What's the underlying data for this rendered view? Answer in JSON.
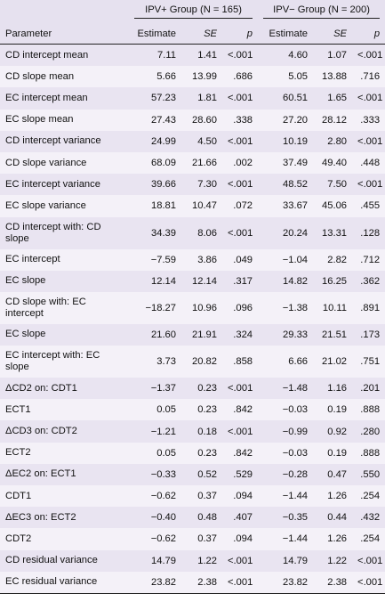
{
  "table": {
    "groups": [
      "IPV+ Group (N = 165)",
      "IPV− Group (N = 200)"
    ],
    "columns": [
      "Parameter",
      "Estimate",
      "SE",
      "p",
      "Estimate",
      "SE",
      "p"
    ],
    "rows": [
      [
        "CD intercept mean",
        "7.11",
        "1.41",
        "<.001",
        "4.60",
        "1.07",
        "<.001"
      ],
      [
        "CD slope mean",
        "5.66",
        "13.99",
        ".686",
        "5.05",
        "13.88",
        ".716"
      ],
      [
        "EC intercept mean",
        "57.23",
        "1.81",
        "<.001",
        "60.51",
        "1.65",
        "<.001"
      ],
      [
        "EC slope mean",
        "27.43",
        "28.60",
        ".338",
        "27.20",
        "28.12",
        ".333"
      ],
      [
        "CD intercept variance",
        "24.99",
        "4.50",
        "<.001",
        "10.19",
        "2.80",
        "<.001"
      ],
      [
        "CD slope variance",
        "68.09",
        "21.66",
        ".002",
        "37.49",
        "49.40",
        ".448"
      ],
      [
        "EC intercept variance",
        "39.66",
        "7.30",
        "<.001",
        "48.52",
        "7.50",
        "<.001"
      ],
      [
        "EC slope variance",
        "18.81",
        "10.47",
        ".072",
        "33.67",
        "45.06",
        ".455"
      ],
      [
        "CD intercept with: CD slope",
        "34.39",
        "8.06",
        "<.001",
        "20.24",
        "13.31",
        ".128"
      ],
      [
        "EC intercept",
        "−7.59",
        "3.86",
        ".049",
        "−1.04",
        "2.82",
        ".712"
      ],
      [
        "EC slope",
        "12.14",
        "12.14",
        ".317",
        "14.82",
        "16.25",
        ".362"
      ],
      [
        "CD slope with: EC intercept",
        "−18.27",
        "10.96",
        ".096",
        "−1.38",
        "10.11",
        ".891"
      ],
      [
        "EC slope",
        "21.60",
        "21.91",
        ".324",
        "29.33",
        "21.51",
        ".173"
      ],
      [
        "EC intercept with: EC slope",
        "3.73",
        "20.82",
        ".858",
        "6.66",
        "21.02",
        ".751"
      ],
      [
        "ΔCD2 on: CDT1",
        "−1.37",
        "0.23",
        "<.001",
        "−1.48",
        "1.16",
        ".201"
      ],
      [
        "ECT1",
        "0.05",
        "0.23",
        ".842",
        "−0.03",
        "0.19",
        ".888"
      ],
      [
        "ΔCD3 on: CDT2",
        "−1.21",
        "0.18",
        "<.001",
        "−0.99",
        "0.92",
        ".280"
      ],
      [
        "ECT2",
        "0.05",
        "0.23",
        ".842",
        "−0.03",
        "0.19",
        ".888"
      ],
      [
        "ΔEC2 on: ECT1",
        "−0.33",
        "0.52",
        ".529",
        "−0.28",
        "0.47",
        ".550"
      ],
      [
        "CDT1",
        "−0.62",
        "0.37",
        ".094",
        "−1.44",
        "1.26",
        ".254"
      ],
      [
        "ΔEC3 on: ECT2",
        "−0.40",
        "0.48",
        ".407",
        "−0.35",
        "0.44",
        ".432"
      ],
      [
        "CDT2",
        "−0.62",
        "0.37",
        ".094",
        "−1.44",
        "1.26",
        ".254"
      ],
      [
        "CD residual variance",
        "14.79",
        "1.22",
        "<.001",
        "14.79",
        "1.22",
        "<.001"
      ],
      [
        "EC residual variance",
        "23.82",
        "2.38",
        "<.001",
        "23.82",
        "2.38",
        "<.001"
      ]
    ]
  }
}
